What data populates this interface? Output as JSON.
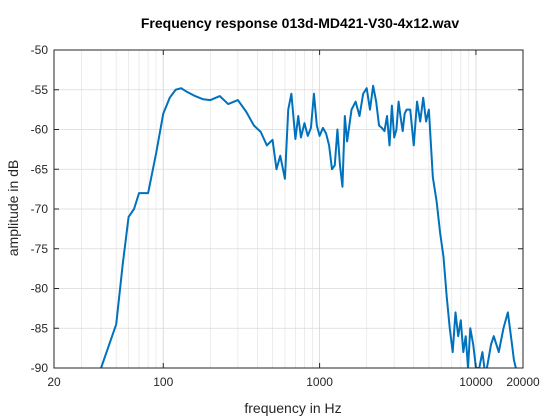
{
  "chart_data": {
    "type": "line",
    "title": "Frequency response 013d-MD421-V30-4x12.wav",
    "xlabel": "frequency in Hz",
    "ylabel": "amplitude in dB",
    "x_scale": "log",
    "xlim": [
      20,
      20000
    ],
    "ylim": [
      -90,
      -50
    ],
    "grid": true,
    "x_ticks": [
      20,
      100,
      1000,
      10000,
      20000
    ],
    "x_tick_labels": [
      "20",
      "100",
      "1000",
      "10000",
      "20000"
    ],
    "y_ticks": [
      -90,
      -85,
      -80,
      -75,
      -70,
      -65,
      -60,
      -55,
      -50
    ],
    "y_tick_labels": [
      "-90",
      "-85",
      "-80",
      "-75",
      "-70",
      "-65",
      "-60",
      "-55",
      "-50"
    ],
    "line_color": "#0072BD",
    "series": [
      {
        "x": [
          40,
          50,
          55,
          60,
          65,
          70,
          80,
          90,
          100,
          110,
          120,
          130,
          140,
          160,
          180,
          200,
          230,
          260,
          300,
          340,
          380,
          420,
          460,
          500,
          530,
          560,
          600,
          630,
          660,
          700,
          730,
          760,
          800,
          840,
          880,
          920,
          960,
          1000,
          1050,
          1100,
          1150,
          1200,
          1250,
          1300,
          1350,
          1400,
          1450,
          1500,
          1600,
          1700,
          1800,
          1900,
          2000,
          2100,
          2200,
          2300,
          2400,
          2500,
          2600,
          2700,
          2800,
          2900,
          3000,
          3100,
          3200,
          3300,
          3400,
          3500,
          3600,
          3800,
          4000,
          4200,
          4400,
          4600,
          4800,
          5000,
          5300,
          5600,
          5900,
          6200,
          6500,
          6800,
          7100,
          7400,
          7700,
          8000,
          8300,
          8600,
          8900,
          9200,
          9600,
          10000,
          10500,
          11000,
          11500,
          12000,
          12500,
          13000,
          14000,
          15000,
          16000,
          17000,
          17500,
          18000
        ],
        "y": [
          -90,
          -84.5,
          -77,
          -71,
          -70,
          -68,
          -68,
          -63,
          -58,
          -56,
          -55,
          -54.8,
          -55.2,
          -55.8,
          -56.2,
          -56.3,
          -55.8,
          -56.8,
          -56.3,
          -57.8,
          -59.5,
          -60.3,
          -62,
          -61.3,
          -65,
          -63.3,
          -66.2,
          -57.5,
          -55.5,
          -61.2,
          -58.3,
          -61,
          -59.2,
          -60.8,
          -59.8,
          -55.5,
          -59.5,
          -60.8,
          -59.8,
          -60.5,
          -62,
          -65,
          -64.5,
          -60,
          -64.5,
          -67.2,
          -58.3,
          -61.5,
          -57.5,
          -56.5,
          -58.3,
          -55.5,
          -54.8,
          -57.5,
          -54.5,
          -56.5,
          -59.5,
          -59.8,
          -60.2,
          -58.3,
          -62,
          -57,
          -61,
          -60,
          -56.5,
          -58.5,
          -60.2,
          -58,
          -57.5,
          -57.5,
          -62,
          -56.5,
          -59,
          -56,
          -59,
          -57.5,
          -66,
          -69,
          -73,
          -76,
          -81,
          -85,
          -88,
          -83,
          -86,
          -84,
          -88,
          -86,
          -90,
          -85,
          -87,
          -90,
          -90,
          -88,
          -91,
          -89,
          -87,
          -86,
          -88,
          -85,
          -83,
          -87,
          -89,
          -90
        ]
      }
    ]
  }
}
